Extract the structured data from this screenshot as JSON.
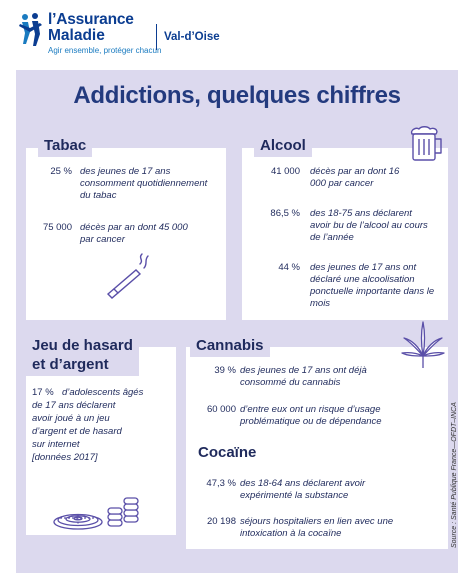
{
  "header": {
    "brand_line1": "l’Assurance",
    "brand_line2": "Maladie",
    "tagline": "Agir ensemble, protéger chacun",
    "region": "Val-d’Oise"
  },
  "title": "Addictions, quelques chiffres",
  "sections": {
    "tabac": {
      "heading": "Tabac",
      "stats": [
        {
          "value": "25 %",
          "text": "des jeunes de 17 ans consomment quotidiennement du tabac"
        },
        {
          "value": "75 000",
          "text": "décès par an dont 45 000 par cancer"
        }
      ]
    },
    "alcool": {
      "heading": "Alcool",
      "stats": [
        {
          "value": "41 000",
          "text": "décès par an dont 16 000 par cancer"
        },
        {
          "value": "86,5 %",
          "text": "des 18-75 ans déclarent avoir bu de l’alcool au cours de l’année"
        },
        {
          "value": "44 %",
          "text": "des jeunes de 17 ans ont déclaré une alcoolisation ponctuelle importante dans le mois"
        }
      ]
    },
    "jeu": {
      "heading_line1": "Jeu de hasard",
      "heading_line2": "et d’argent",
      "value": "17 %",
      "text_lines": [
        "d’adolescents âgés",
        "de 17 ans déclarent",
        "avoir joué à un jeu",
        "d’argent et de hasard",
        "sur internet",
        "[données 2017]"
      ]
    },
    "cannabis": {
      "heading": "Cannabis",
      "stats": [
        {
          "value": "39 %",
          "text": "des jeunes de 17 ans ont déjà consommé du cannabis"
        },
        {
          "value": "60 000",
          "text": "d’entre eux ont un risque d’usage problématique ou de dépendance"
        }
      ]
    },
    "cocaine": {
      "heading": "Cocaïne",
      "stats": [
        {
          "value": "47,3 %",
          "text": "des 18-64 ans déclarent avoir expérimenté la substance"
        },
        {
          "value": "20 198",
          "text": "séjours hospitaliers en lien avec une intoxication à la cocaïne"
        }
      ]
    }
  },
  "source": "Source : Santé Publique France—OFDT–INCA",
  "colors": {
    "panel": "#dcd9ee",
    "brand": "#0b3d91",
    "title": "#233a7e",
    "icon": "#5a4fa8"
  }
}
